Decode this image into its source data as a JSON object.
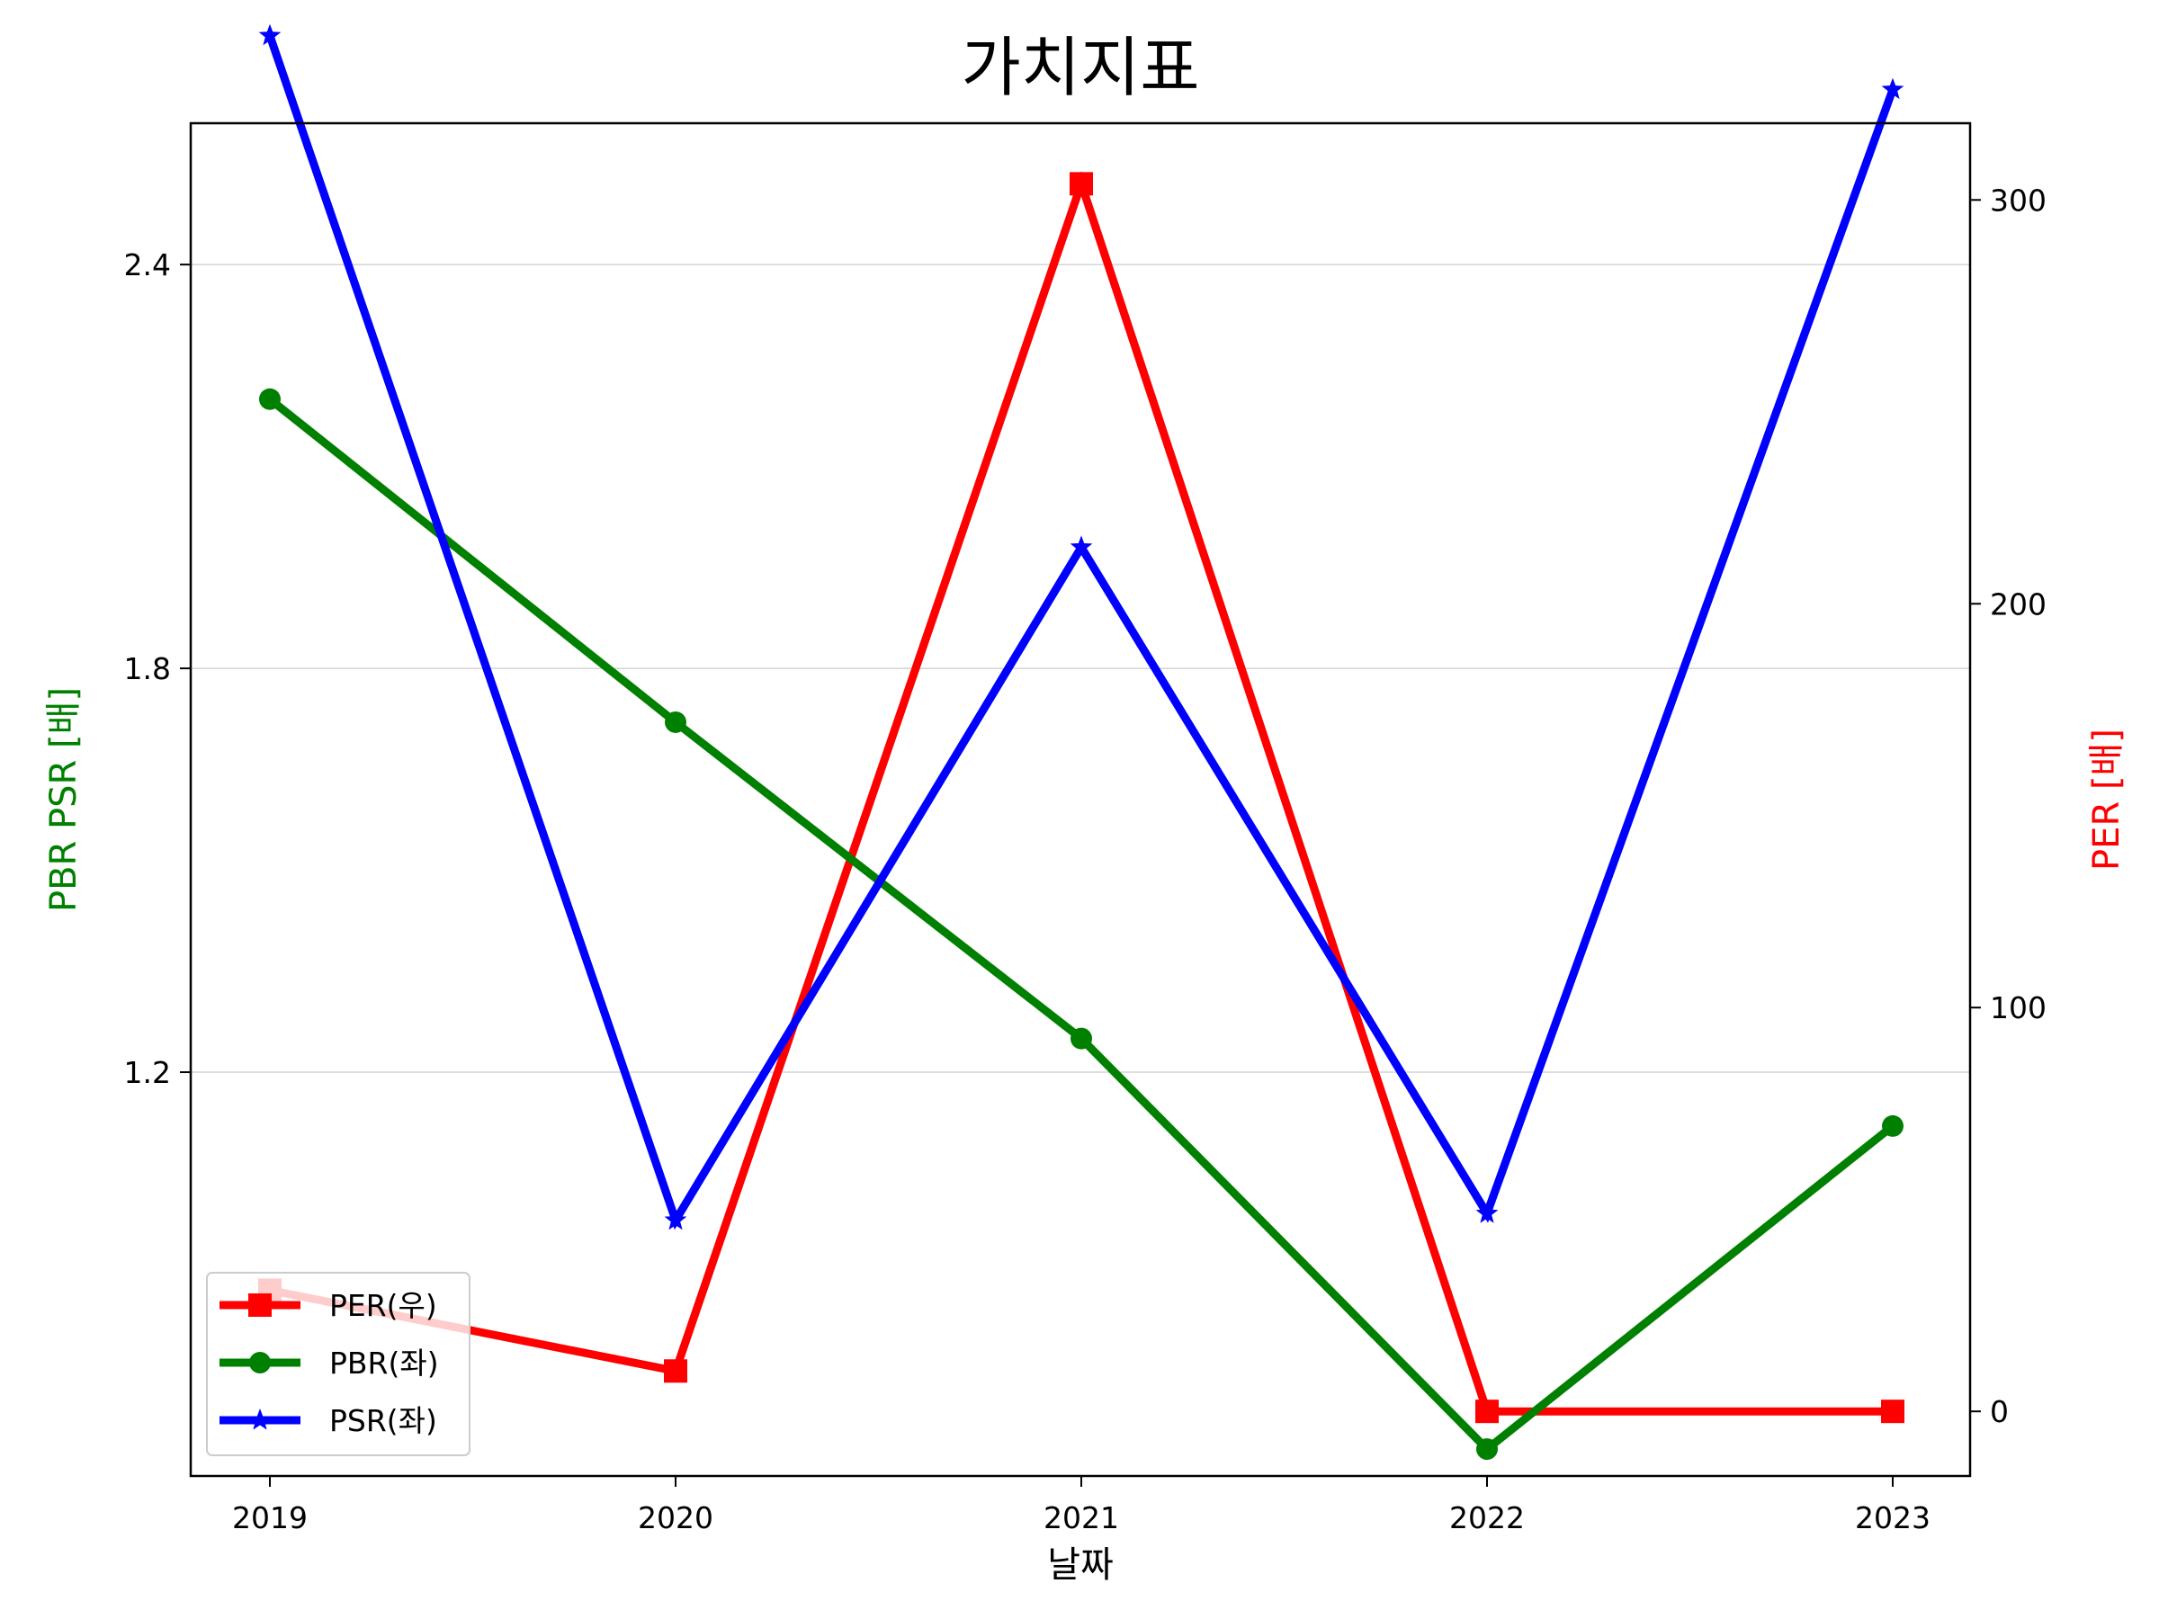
{
  "chart_data": {
    "type": "line",
    "title": "가치지표",
    "xlabel": "날짜",
    "ylabel_left": "PBR PSR [배]",
    "ylabel_right": "PER [배]",
    "ylabel_left_color": "#008000",
    "ylabel_right_color": "#ff0000",
    "categories": [
      "2019",
      "2020",
      "2021",
      "2022",
      "2023"
    ],
    "y_left": {
      "ticks": [
        1.2,
        1.8,
        2.4
      ],
      "tick_labels": [
        "1.2",
        "1.8",
        "2.4"
      ],
      "lim": [
        0.6,
        2.61
      ],
      "grid": true
    },
    "y_right": {
      "ticks": [
        0,
        100,
        200,
        300
      ],
      "tick_labels": [
        "0",
        "100",
        "200",
        "300"
      ],
      "lim": [
        -16,
        319
      ]
    },
    "series": [
      {
        "name": "PER(우)",
        "axis": "right",
        "color": "#ff0000",
        "marker": "square",
        "values": [
          30,
          10,
          304,
          0,
          0
        ]
      },
      {
        "name": "PBR(좌)",
        "axis": "left",
        "color": "#008000",
        "marker": "circle",
        "values": [
          2.2,
          1.72,
          1.25,
          0.64,
          1.12
        ]
      },
      {
        "name": "PSR(좌)",
        "axis": "left",
        "color": "#0000ff",
        "marker": "star",
        "values": [
          2.74,
          0.98,
          1.98,
          0.99,
          2.66
        ]
      }
    ],
    "legend_position": "lower-left"
  }
}
